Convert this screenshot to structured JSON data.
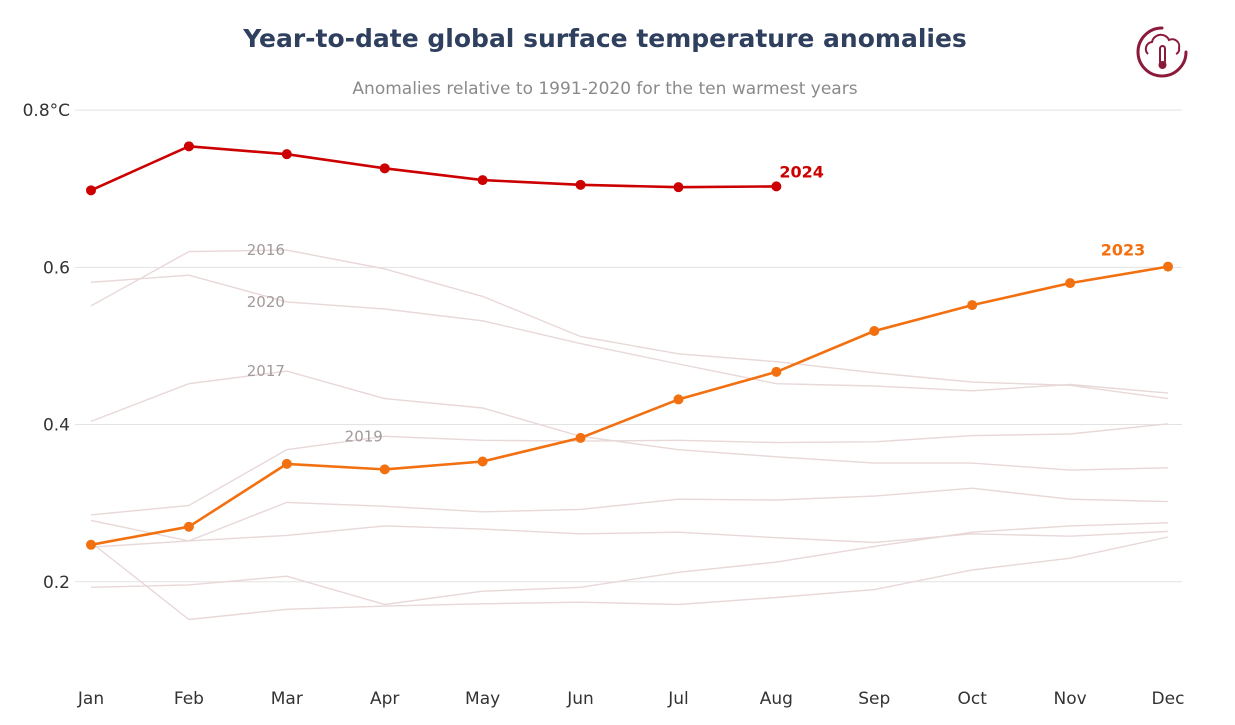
{
  "title": "Year-to-date global surface temperature anomalies",
  "subtitle": "Anomalies relative to 1991-2020 for the ten warmest years",
  "logo_icon": "cloud-thermometer-icon",
  "colors": {
    "title": "#2f3f5e",
    "series_2024": "#cc0000",
    "series_2023": "#f2700f",
    "background_series": "#e8d8d8",
    "grid": "#e3e3e3",
    "logo": "#8b1a3a"
  },
  "chart_data": {
    "type": "line",
    "categories": [
      "Jan",
      "Feb",
      "Mar",
      "Apr",
      "May",
      "Jun",
      "Jul",
      "Aug",
      "Sep",
      "Oct",
      "Nov",
      "Dec"
    ],
    "yticks": [
      "0.8°C",
      "0.6",
      "0.4",
      "0.2"
    ],
    "ylim": [
      0.075,
      0.86
    ],
    "grid": true,
    "highlight_series": [
      {
        "name": "2024",
        "values": [
          0.698,
          0.754,
          0.744,
          0.726,
          0.711,
          0.705,
          0.702,
          0.703,
          null,
          null,
          null,
          null
        ]
      },
      {
        "name": "2023",
        "values": [
          0.247,
          0.27,
          0.35,
          0.343,
          0.353,
          0.383,
          0.432,
          0.467,
          0.519,
          0.552,
          0.58,
          0.601
        ]
      }
    ],
    "background_series": [
      {
        "name": "2016",
        "values": [
          0.551,
          0.62,
          0.622,
          0.598,
          0.563,
          0.512,
          0.49,
          0.48,
          0.466,
          0.454,
          0.45,
          0.433
        ]
      },
      {
        "name": "2020",
        "values": [
          0.581,
          0.59,
          0.556,
          0.547,
          0.532,
          0.503,
          0.477,
          0.452,
          0.449,
          0.443,
          0.451,
          0.44
        ]
      },
      {
        "name": "2017",
        "values": [
          0.404,
          0.452,
          0.468,
          0.433,
          0.421,
          0.385,
          0.368,
          0.359,
          0.351,
          0.351,
          0.342,
          0.345
        ]
      },
      {
        "name": "2019",
        "values": [
          0.285,
          0.297,
          0.368,
          0.385,
          0.38,
          0.379,
          0.38,
          0.377,
          0.378,
          0.386,
          0.388,
          0.401
        ]
      },
      {
        "name": "",
        "values": [
          0.278,
          0.252,
          0.301,
          0.296,
          0.289,
          0.292,
          0.305,
          0.304,
          0.309,
          0.319,
          0.305,
          0.302
        ]
      },
      {
        "name": "",
        "values": [
          0.244,
          0.252,
          0.259,
          0.271,
          0.267,
          0.261,
          0.263,
          0.256,
          0.25,
          0.261,
          0.258,
          0.264
        ]
      },
      {
        "name": "",
        "values": [
          0.25,
          0.152,
          0.165,
          0.169,
          0.172,
          0.174,
          0.171,
          0.18,
          0.19,
          0.215,
          0.23,
          0.257
        ]
      },
      {
        "name": "",
        "values": [
          0.193,
          0.196,
          0.207,
          0.171,
          0.188,
          0.193,
          0.212,
          0.225,
          0.245,
          0.263,
          0.271,
          0.275
        ]
      }
    ]
  }
}
